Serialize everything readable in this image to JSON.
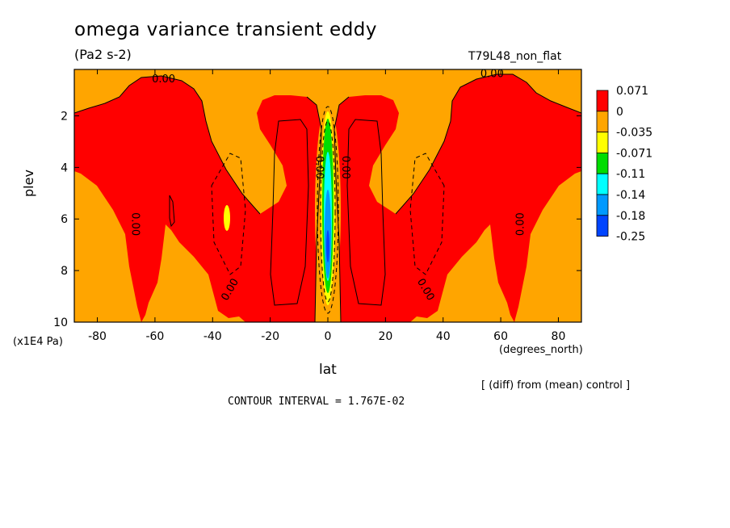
{
  "chart_data": {
    "type": "heatmap",
    "title": "omega variance transient eddy",
    "subtitle": "(Pa2 s-2)",
    "run_label": "T79L48_non_flat",
    "xlabel": "lat",
    "xunit": "(degrees_north)",
    "ylabel": "plev",
    "yunit": "(x1E4 Pa)",
    "xlim": [
      -88,
      88
    ],
    "ylim": [
      10,
      0.2
    ],
    "x_ticks": [
      -80,
      -60,
      -40,
      -20,
      0,
      20,
      40,
      60,
      80
    ],
    "y_ticks": [
      2,
      4,
      6,
      8,
      10
    ],
    "contour_labels": [
      "0.00",
      "0.00",
      "0.00",
      "0.00",
      "0.00",
      "0.00",
      "0.00",
      "0.00"
    ],
    "legend": {
      "placement": "right",
      "levels": [
        "0.071",
        "0",
        "-0.035",
        "-0.071",
        "-0.11",
        "-0.14",
        "-0.18",
        "-0.25"
      ],
      "colors": [
        "#ff0000",
        "#ffa500",
        "#ffff00",
        "#00dd00",
        "#00ffff",
        "#0099ff",
        "#0044ff"
      ]
    },
    "note": "[ (diff) from (mean) control ]",
    "contour_interval": "CONTOUR INTERVAL = 1.767E-02"
  }
}
